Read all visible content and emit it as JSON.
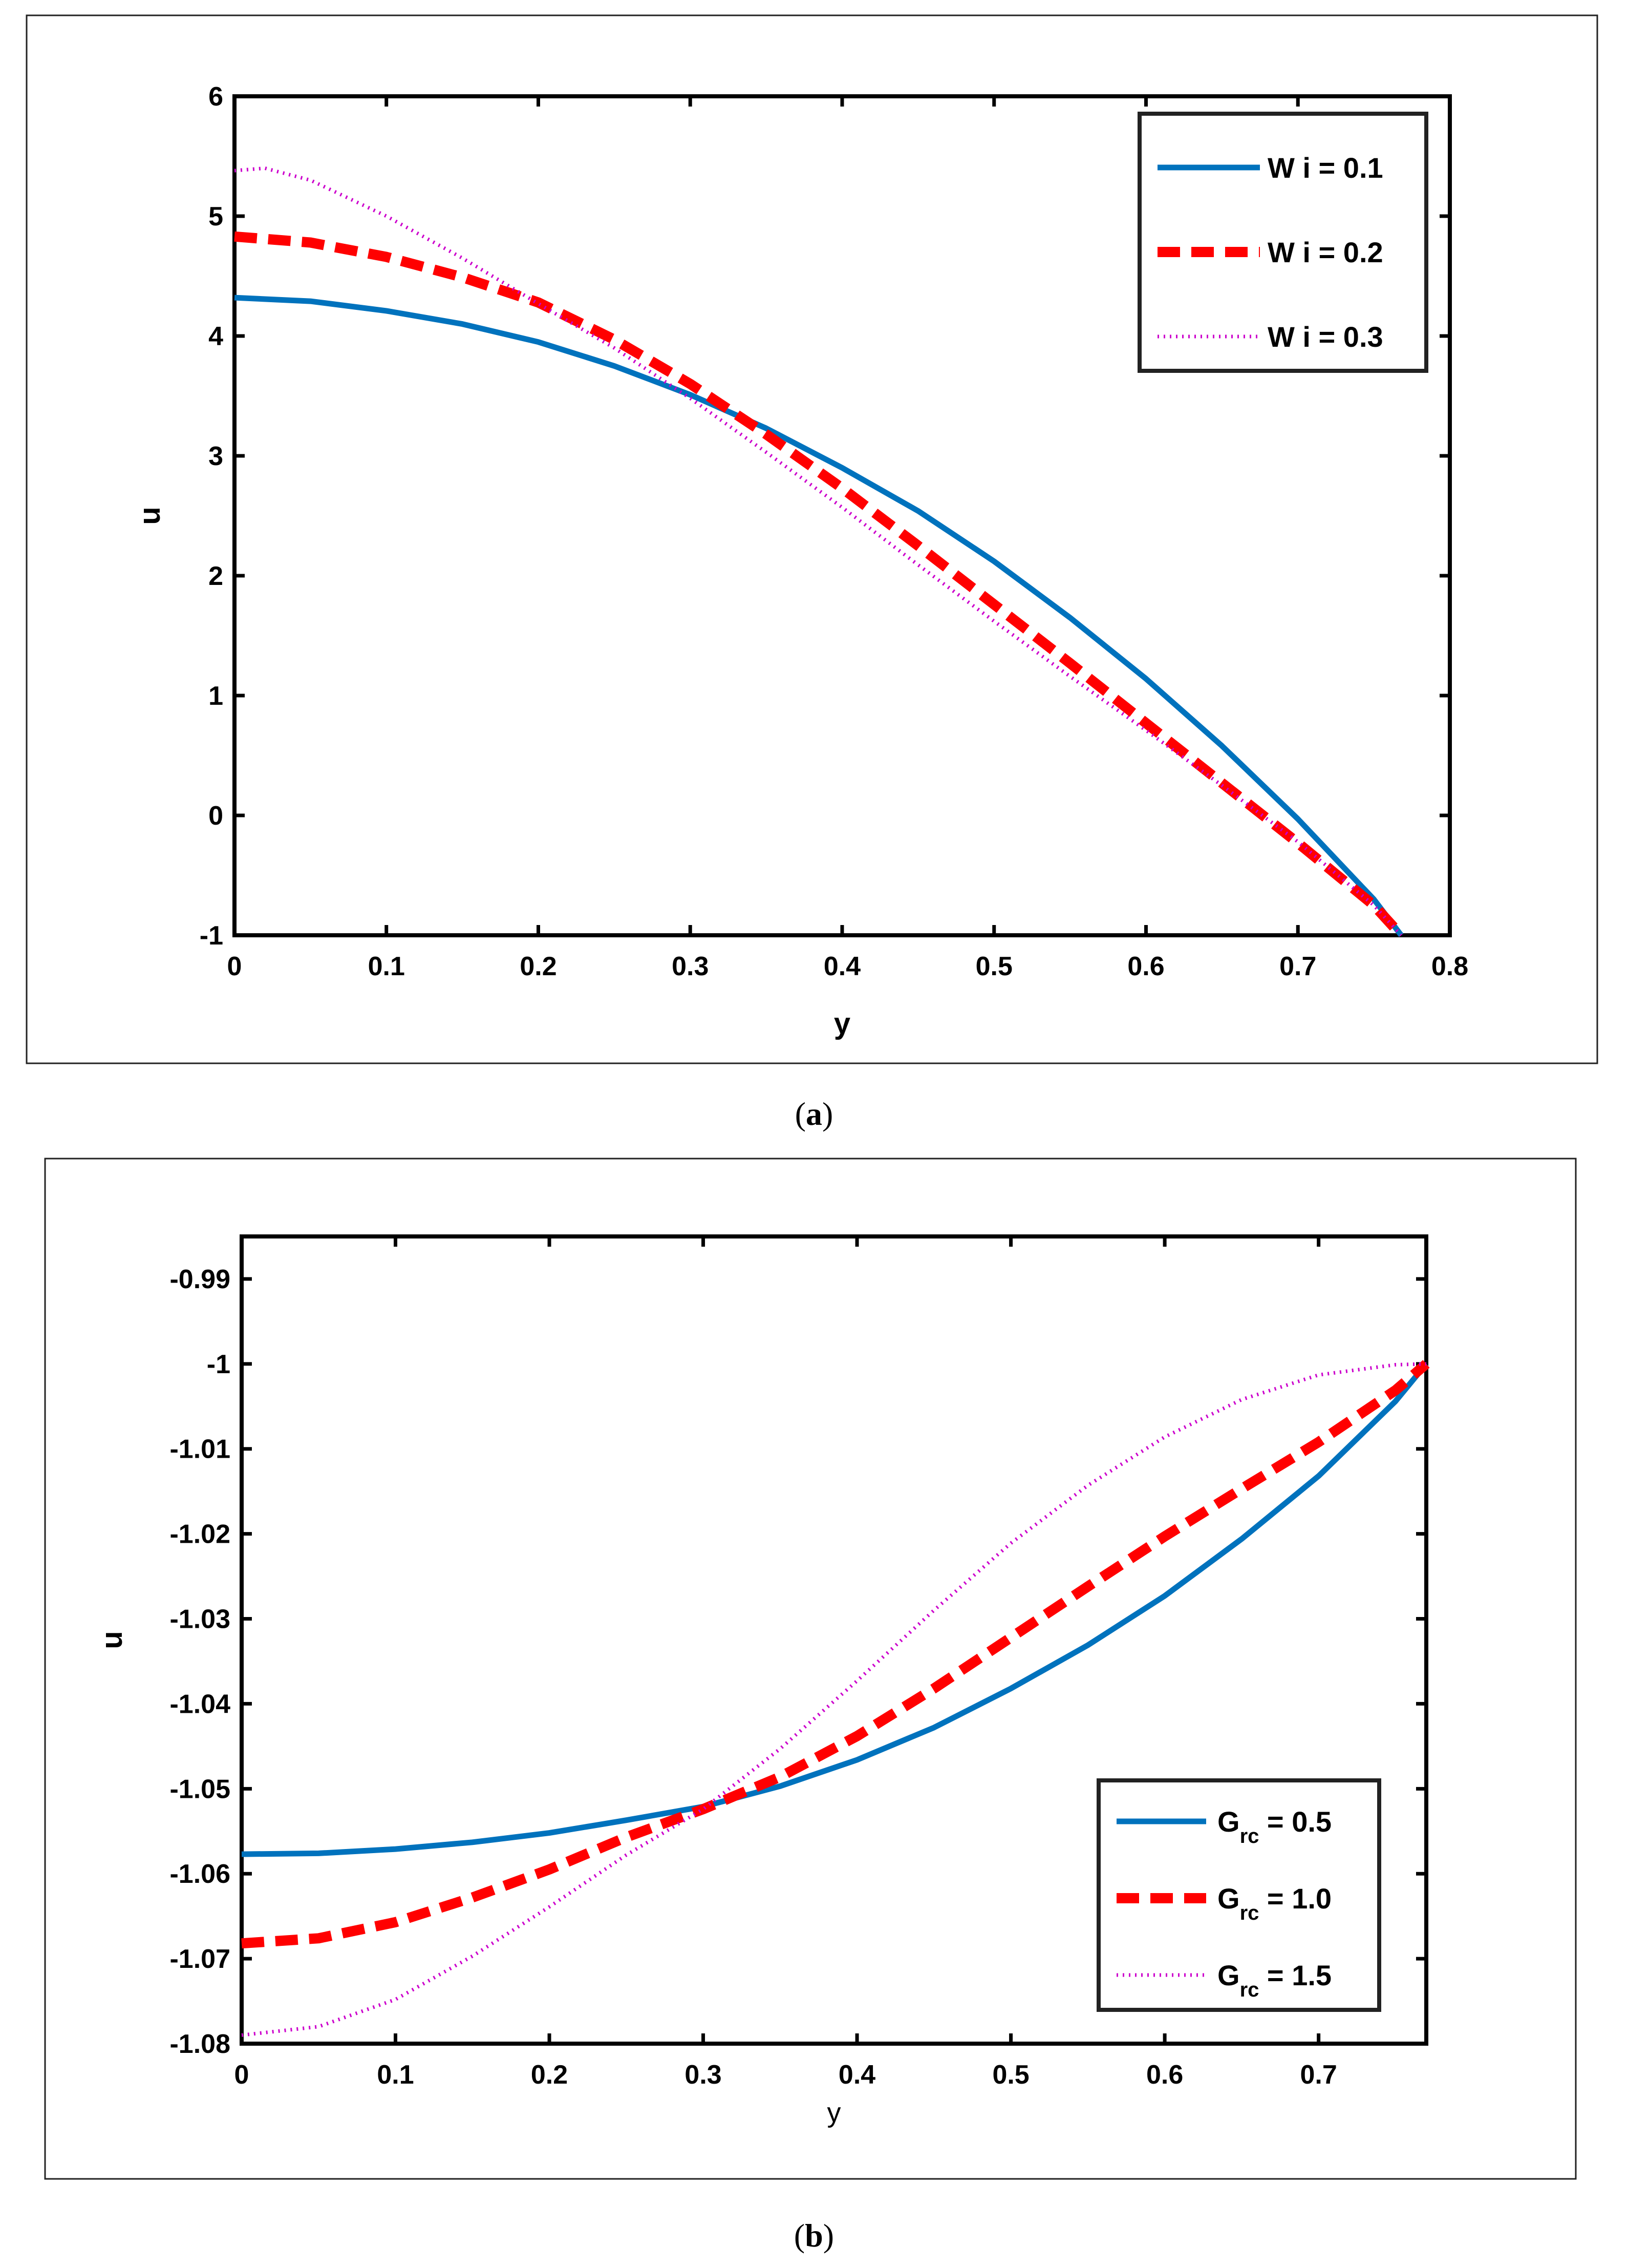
{
  "figures": [
    {
      "caption_open": "(",
      "caption_letter": "a",
      "caption_close": ")"
    },
    {
      "caption_open": "(",
      "caption_letter": "b",
      "caption_close": ")"
    }
  ],
  "chart_data": [
    {
      "type": "line",
      "title": "",
      "xlabel": "y",
      "ylabel": "u",
      "xlim": [
        0,
        0.8
      ],
      "ylim": [
        -1,
        6
      ],
      "xticks": [
        "0",
        "0.1",
        "0.2",
        "0.3",
        "0.4",
        "0.5",
        "0.6",
        "0.7",
        "0.8"
      ],
      "yticks": [
        "-1",
        "0",
        "1",
        "2",
        "3",
        "4",
        "5",
        "6"
      ],
      "legend_position": "top-right",
      "series": [
        {
          "name": "W i = 0.1",
          "legend_main": "W i = 0.1",
          "legend_sub": "",
          "legend_suffix": "",
          "color": "#0072BD",
          "style": "solid",
          "x": [
            0,
            0.05,
            0.1,
            0.15,
            0.2,
            0.25,
            0.3,
            0.35,
            0.4,
            0.45,
            0.5,
            0.55,
            0.6,
            0.65,
            0.7,
            0.75,
            0.768
          ],
          "y": [
            4.32,
            4.29,
            4.21,
            4.1,
            3.95,
            3.75,
            3.51,
            3.23,
            2.9,
            2.54,
            2.12,
            1.65,
            1.14,
            0.58,
            -0.03,
            -0.7,
            -1.0
          ]
        },
        {
          "name": "W i = 0.2",
          "legend_main": "W i = 0.2",
          "legend_sub": "",
          "legend_suffix": "",
          "color": "#FF0000",
          "style": "dashed",
          "x": [
            0,
            0.05,
            0.1,
            0.15,
            0.2,
            0.25,
            0.3,
            0.35,
            0.4,
            0.45,
            0.5,
            0.55,
            0.6,
            0.65,
            0.7,
            0.75,
            0.768
          ],
          "y": [
            4.83,
            4.78,
            4.66,
            4.49,
            4.28,
            3.97,
            3.6,
            3.18,
            2.73,
            2.25,
            1.76,
            1.27,
            0.77,
            0.27,
            -0.23,
            -0.75,
            -1.0
          ]
        },
        {
          "name": "W i = 0.3",
          "legend_main": "W i = 0.3",
          "legend_sub": "",
          "legend_suffix": "",
          "color": "#CC00CC",
          "style": "dotted",
          "x": [
            0,
            0.02,
            0.05,
            0.1,
            0.15,
            0.2,
            0.25,
            0.3,
            0.35,
            0.4,
            0.45,
            0.5,
            0.55,
            0.6,
            0.65,
            0.7,
            0.75,
            0.768
          ],
          "y": [
            5.38,
            5.4,
            5.3,
            5.0,
            4.65,
            4.27,
            3.9,
            3.48,
            3.03,
            2.57,
            2.09,
            1.62,
            1.16,
            0.71,
            0.25,
            -0.22,
            -0.75,
            -1.0
          ]
        }
      ]
    },
    {
      "type": "line",
      "title": "",
      "xlabel": "y",
      "ylabel": "u",
      "xlim": [
        0,
        0.77
      ],
      "ylim": [
        -1.08,
        -0.985
      ],
      "xticks": [
        "0",
        "0.1",
        "0.2",
        "0.3",
        "0.4",
        "0.5",
        "0.6",
        "0.7"
      ],
      "xtick_values": [
        0,
        0.1,
        0.2,
        0.3,
        0.4,
        0.5,
        0.6,
        0.7
      ],
      "yticks": [
        "-0.99",
        "-1",
        "-1.01",
        "-1.02",
        "-1.03",
        "-1.04",
        "-1.05",
        "-1.06",
        "-1.07",
        "-1.08"
      ],
      "ytick_values": [
        -0.99,
        -1.0,
        -1.01,
        -1.02,
        -1.03,
        -1.04,
        -1.05,
        -1.06,
        -1.07,
        -1.08
      ],
      "legend_position": "bottom-right",
      "series": [
        {
          "name": "Grc = 0.5",
          "legend_main": "G",
          "legend_sub": "rc",
          "legend_suffix": " = 0.5",
          "color": "#0072BD",
          "style": "solid",
          "x": [
            0,
            0.05,
            0.1,
            0.15,
            0.2,
            0.25,
            0.3,
            0.35,
            0.4,
            0.45,
            0.5,
            0.55,
            0.6,
            0.65,
            0.7,
            0.75,
            0.77
          ],
          "y": [
            -1.0577,
            -1.0576,
            -1.0571,
            -1.0563,
            -1.0552,
            -1.0537,
            -1.0521,
            -1.0497,
            -1.0466,
            -1.0428,
            -1.0382,
            -1.0331,
            -1.0273,
            -1.0206,
            -1.0132,
            -1.0044,
            -1.0
          ]
        },
        {
          "name": "Grc = 1.0",
          "legend_main": "G",
          "legend_sub": "rc",
          "legend_suffix": " = 1.0",
          "color": "#FF0000",
          "style": "dashed",
          "x": [
            0,
            0.05,
            0.1,
            0.15,
            0.2,
            0.25,
            0.3,
            0.35,
            0.4,
            0.45,
            0.5,
            0.55,
            0.6,
            0.65,
            0.7,
            0.75,
            0.77
          ],
          "y": [
            -1.0682,
            -1.0676,
            -1.0657,
            -1.0628,
            -1.0595,
            -1.0557,
            -1.0524,
            -1.0486,
            -1.0438,
            -1.0382,
            -1.0322,
            -1.0262,
            -1.0203,
            -1.0147,
            -1.0092,
            -1.0031,
            -1.0
          ]
        },
        {
          "name": "Grc = 1.5",
          "legend_main": "G",
          "legend_sub": "rc",
          "legend_suffix": " = 1.5",
          "color": "#CC00CC",
          "style": "dotted",
          "x": [
            0,
            0.05,
            0.1,
            0.15,
            0.2,
            0.25,
            0.3,
            0.35,
            0.4,
            0.45,
            0.5,
            0.55,
            0.6,
            0.65,
            0.7,
            0.75,
            0.77
          ],
          "y": [
            -1.079,
            -1.078,
            -1.0748,
            -1.0697,
            -1.0639,
            -1.0578,
            -1.0524,
            -1.0453,
            -1.0373,
            -1.029,
            -1.0211,
            -1.0143,
            -1.0086,
            -1.0042,
            -1.0013,
            -1.0001,
            -1.0
          ]
        }
      ]
    }
  ]
}
